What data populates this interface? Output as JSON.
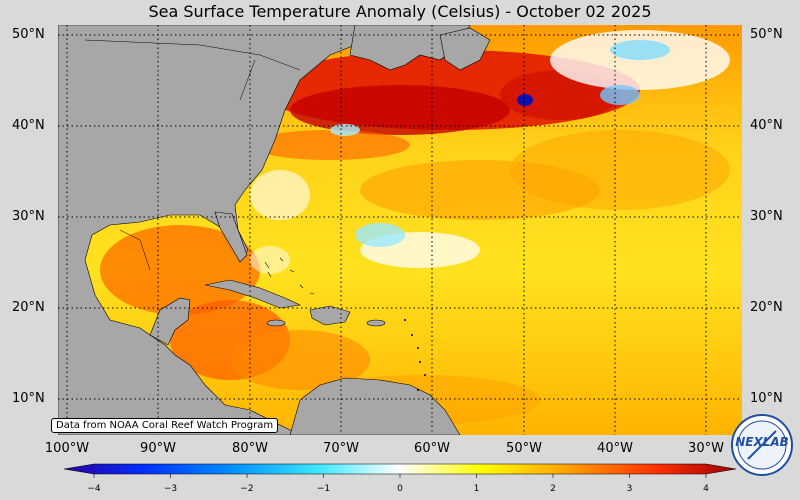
{
  "title": "Sea Surface Temperature Anomaly (Celsius) - October 02 2025",
  "latitude_labels": [
    "50°N",
    "40°N",
    "30°N",
    "20°N",
    "10°N"
  ],
  "longitude_labels": [
    "100°W",
    "90°W",
    "80°W",
    "70°W",
    "60°W",
    "50°W",
    "40°W",
    "30°W"
  ],
  "credit": "Data from NOAA Coral Reef Watch Program",
  "colorbar": {
    "ticks": [
      "−4",
      "−3",
      "−2",
      "−1",
      "0",
      "1",
      "2",
      "3",
      "4"
    ],
    "range": [
      -4,
      4
    ]
  },
  "logo": {
    "text": "NEXLAB"
  },
  "colors": {
    "land": "#a7a7a7",
    "ocean_warm": "#ffb300",
    "ocean_hot": "#e31a00",
    "ocean_cool": "#5cd6ff",
    "background": "#d9d9d9"
  }
}
